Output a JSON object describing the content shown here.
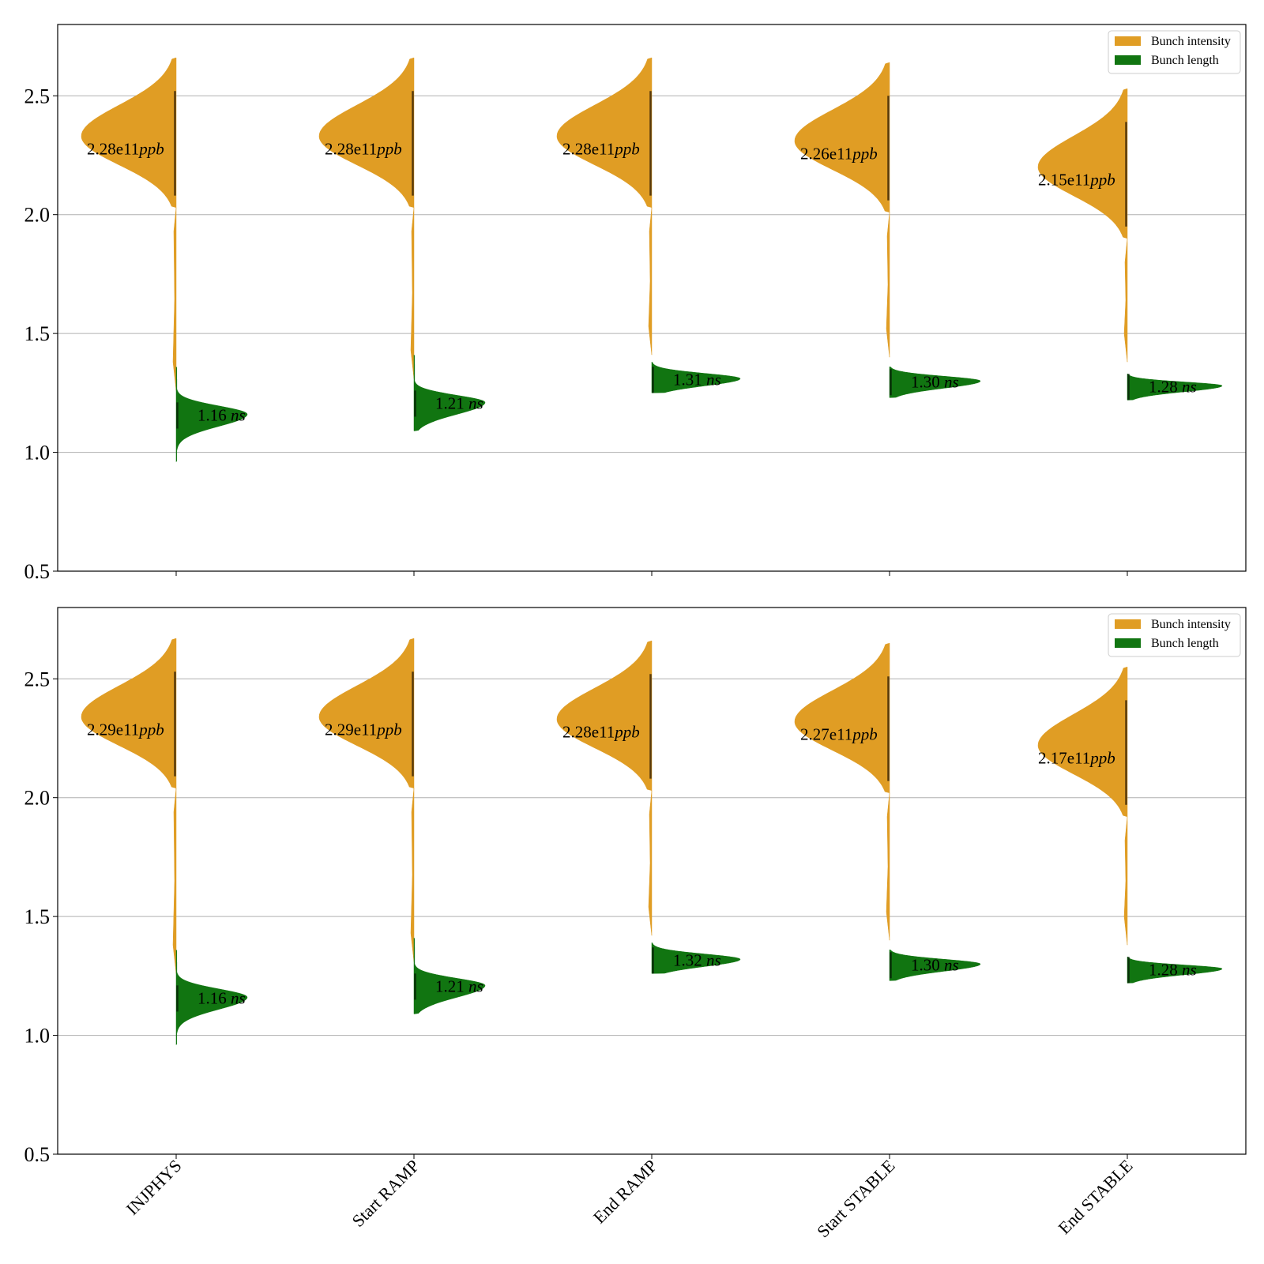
{
  "chart_data": {
    "type": "violin",
    "categories": [
      "INJPHYS",
      "Start RAMP",
      "End RAMP",
      "Start STABLE",
      "End STABLE"
    ],
    "ylim": [
      0.5,
      2.8
    ],
    "yticks": [
      0.5,
      1.0,
      1.5,
      2.0,
      2.5
    ],
    "grid": "horizontal",
    "legend_position": "top-right",
    "legend": [
      {
        "label": "Bunch intensity",
        "color": "#e09d24"
      },
      {
        "label": "Bunch length",
        "color": "#117511"
      }
    ],
    "panels": [
      {
        "intensity": {
          "medians": [
            2.28,
            2.28,
            2.28,
            2.26,
            2.15
          ],
          "labels": [
            "2.28e11ppb",
            "2.28e11ppb",
            "2.28e11ppb",
            "2.26e11ppb",
            "2.15e11ppb"
          ],
          "label_parts": [
            [
              "2.28e11",
              "ppb"
            ],
            [
              "2.28e11",
              "ppb"
            ],
            [
              "2.28e11",
              "ppb"
            ],
            [
              "2.26e11",
              "ppb"
            ],
            [
              "2.15e11",
              "ppb"
            ]
          ]
        },
        "length": {
          "medians": [
            1.16,
            1.21,
            1.31,
            1.3,
            1.28
          ],
          "labels": [
            "1.16 ns",
            "1.21 ns",
            "1.31 ns",
            "1.30 ns",
            "1.28 ns"
          ],
          "label_parts": [
            [
              "1.16 ",
              "ns"
            ],
            [
              "1.21 ",
              "ns"
            ],
            [
              "1.31 ",
              "ns"
            ],
            [
              "1.30 ",
              "ns"
            ],
            [
              "1.28 ",
              "ns"
            ]
          ]
        }
      },
      {
        "intensity": {
          "medians": [
            2.29,
            2.29,
            2.28,
            2.27,
            2.17
          ],
          "labels": [
            "2.29e11ppb",
            "2.29e11ppb",
            "2.28e11ppb",
            "2.27e11ppb",
            "2.17e11ppb"
          ],
          "label_parts": [
            [
              "2.29e11",
              "ppb"
            ],
            [
              "2.29e11",
              "ppb"
            ],
            [
              "2.28e11",
              "ppb"
            ],
            [
              "2.27e11",
              "ppb"
            ],
            [
              "2.17e11",
              "ppb"
            ]
          ]
        },
        "length": {
          "medians": [
            1.16,
            1.21,
            1.32,
            1.3,
            1.28
          ],
          "labels": [
            "1.16 ns",
            "1.21 ns",
            "1.32 ns",
            "1.30 ns",
            "1.28 ns"
          ],
          "label_parts": [
            [
              "1.16 ",
              "ns"
            ],
            [
              "1.21 ",
              "ns"
            ],
            [
              "1.32 ",
              "ns"
            ],
            [
              "1.30 ",
              "ns"
            ],
            [
              "1.28 ",
              "ns"
            ]
          ]
        }
      }
    ]
  }
}
